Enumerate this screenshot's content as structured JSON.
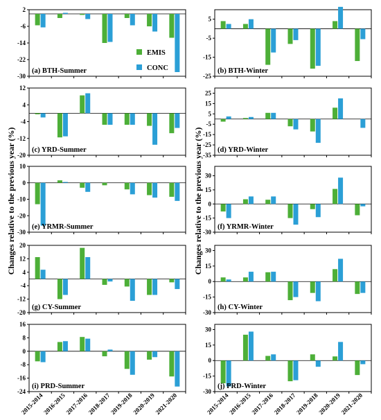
{
  "ylabel": "Changes relative to the previous year (%)",
  "legend": {
    "items": [
      {
        "name": "EMIS",
        "color": "#4daf38"
      },
      {
        "name": "CONC",
        "color": "#2b9fd6"
      }
    ],
    "placement": "inside panel (a), lower-right"
  },
  "chart_data": [
    {
      "id": "a",
      "type": "bar",
      "label": "(a) BTH-Summer",
      "yticks": [
        2,
        -6,
        -14,
        -22,
        -30
      ],
      "ylim": [
        -30,
        2
      ],
      "categories": [
        "2015-2014",
        "2016-2015",
        "2017-2016",
        "2018-2017",
        "2019-2018",
        "2020-2019",
        "2021-2020"
      ],
      "series": [
        {
          "name": "EMIS",
          "values": [
            -5.5,
            -2.0,
            -0.5,
            -14.0,
            -2.0,
            -6.0,
            -11.5
          ]
        },
        {
          "name": "CONC",
          "values": [
            -6.5,
            0.5,
            -2.5,
            -13.5,
            -5.5,
            -8.5,
            -28.0
          ]
        }
      ]
    },
    {
      "id": "b",
      "type": "bar",
      "label": "(b) BTH-Winter",
      "yticks": [
        5,
        -5,
        -15,
        -25
      ],
      "ylim": [
        -25,
        10
      ],
      "categories": [
        "2015-2014",
        "2016-2015",
        "2017-2016",
        "2018-2017",
        "2019-2018",
        "2020-2019",
        "2021-2020"
      ],
      "series": [
        {
          "name": "EMIS",
          "values": [
            4.0,
            2.5,
            -19.0,
            -8.0,
            -21.0,
            4.0,
            -17.0
          ]
        },
        {
          "name": "CONC",
          "values": [
            2.5,
            5.0,
            -12.5,
            -6.0,
            -19.5,
            11.5,
            -5.5
          ]
        }
      ]
    },
    {
      "id": "c",
      "type": "bar",
      "label": "(c) YRD-Summer",
      "yticks": [
        12,
        4,
        -4,
        -12,
        -20
      ],
      "ylim": [
        -20,
        12
      ],
      "categories": [
        "2015-2014",
        "2016-2015",
        "2017-2016",
        "2018-2017",
        "2019-2018",
        "2020-2019",
        "2021-2020"
      ],
      "series": [
        {
          "name": "EMIS",
          "values": [
            -0.5,
            -11.5,
            8.5,
            -5.5,
            -5.5,
            -6.0,
            -9.5
          ]
        },
        {
          "name": "CONC",
          "values": [
            -2.0,
            -11.0,
            9.5,
            -5.5,
            -5.5,
            -15.0,
            -7.0
          ]
        }
      ]
    },
    {
      "id": "d",
      "type": "bar",
      "label": "(d) YRD-Winter",
      "yticks": [
        25,
        15,
        5,
        -5,
        -15,
        -25,
        -35
      ],
      "ylim": [
        -35,
        30
      ],
      "categories": [
        "2015-2014",
        "2016-2015",
        "2017-2016",
        "2018-2017",
        "2019-2018",
        "2020-2019",
        "2021-2020"
      ],
      "series": [
        {
          "name": "EMIS",
          "values": [
            -2.5,
            1.0,
            6.0,
            -7.0,
            -12.0,
            11.0,
            0.0
          ]
        },
        {
          "name": "CONC",
          "values": [
            2.5,
            2.0,
            6.0,
            -10.0,
            -23.0,
            20.0,
            -8.5
          ]
        }
      ]
    },
    {
      "id": "e",
      "type": "bar",
      "label": "(e) YRMR-Summer",
      "yticks": [
        10,
        0,
        -10,
        -20,
        -30
      ],
      "ylim": [
        -30,
        10
      ],
      "categories": [
        "2015-2014",
        "2016-2015",
        "2017-2016",
        "2018-2017",
        "2019-2018",
        "2020-2019",
        "2021-2020"
      ],
      "series": [
        {
          "name": "EMIS",
          "values": [
            -13.0,
            1.5,
            -3.0,
            -1.5,
            -4.0,
            -7.5,
            -8.5
          ]
        },
        {
          "name": "CONC",
          "values": [
            -26.0,
            0.5,
            -5.5,
            0.0,
            -7.0,
            -9.0,
            -11.0
          ]
        }
      ]
    },
    {
      "id": "f",
      "type": "bar",
      "label": "(f) YRMR-Winter",
      "yticks": [
        30,
        15,
        0,
        -15,
        -30
      ],
      "ylim": [
        -30,
        40
      ],
      "categories": [
        "2015-2014",
        "2016-2015",
        "2017-2016",
        "2018-2017",
        "2019-2018",
        "2020-2019",
        "2021-2020"
      ],
      "series": [
        {
          "name": "EMIS",
          "values": [
            -8.0,
            5.0,
            4.5,
            -15.0,
            -5.5,
            16.0,
            -12.0
          ]
        },
        {
          "name": "CONC",
          "values": [
            -15.0,
            8.0,
            8.0,
            -22.0,
            -14.0,
            28.0,
            -2.5
          ]
        }
      ]
    },
    {
      "id": "g",
      "type": "bar",
      "label": "(g) CY-Summer",
      "yticks": [
        20,
        12,
        4,
        -4,
        -12,
        -20
      ],
      "ylim": [
        -20,
        20
      ],
      "categories": [
        "2015-2014",
        "2016-2015",
        "2017-2016",
        "2018-2017",
        "2019-2018",
        "2020-2019",
        "2021-2020"
      ],
      "series": [
        {
          "name": "EMIS",
          "values": [
            13.0,
            -12.0,
            18.5,
            -3.5,
            -4.5,
            -9.5,
            -2.0
          ]
        },
        {
          "name": "CONC",
          "values": [
            5.5,
            -9.5,
            13.0,
            -1.5,
            -13.0,
            -9.5,
            -6.0
          ]
        }
      ]
    },
    {
      "id": "h",
      "type": "bar",
      "label": "(h) CY-Winter",
      "yticks": [
        30,
        15,
        0,
        -15,
        -30
      ],
      "ylim": [
        -30,
        35
      ],
      "categories": [
        "2015-2014",
        "2016-2015",
        "2017-2016",
        "2018-2017",
        "2019-2018",
        "2020-2019",
        "2021-2020"
      ],
      "series": [
        {
          "name": "EMIS",
          "values": [
            4.0,
            4.0,
            9.0,
            -18.0,
            -11.0,
            12.0,
            -12.0
          ]
        },
        {
          "name": "CONC",
          "values": [
            2.0,
            9.5,
            9.5,
            -15.0,
            -19.0,
            22.0,
            -11.0
          ]
        }
      ]
    },
    {
      "id": "i",
      "type": "bar",
      "label": "(i) PRD-Summer",
      "yticks": [
        16,
        8,
        0,
        -8,
        -16,
        -24
      ],
      "ylim": [
        -24,
        16
      ],
      "categories": [
        "2015-2014",
        "2016-2015",
        "2017-2016",
        "2018-2017",
        "2019-2018",
        "2020-2019",
        "2021-2020"
      ],
      "series": [
        {
          "name": "EMIS",
          "values": [
            -6.0,
            5.5,
            8.5,
            -3.0,
            -10.5,
            -5.0,
            -15.0
          ]
        },
        {
          "name": "CONC",
          "values": [
            -6.5,
            6.0,
            7.5,
            1.0,
            -14.0,
            -3.5,
            -21.0
          ]
        }
      ]
    },
    {
      "id": "j",
      "type": "bar",
      "label": "(j) PRD-Winter",
      "yticks": [
        30,
        15,
        0,
        -15,
        -30
      ],
      "ylim": [
        -30,
        35
      ],
      "categories": [
        "2015-2014",
        "2016-2015",
        "2017-2016",
        "2018-2017",
        "2019-2018",
        "2020-2019",
        "2021-2020"
      ],
      "series": [
        {
          "name": "EMIS",
          "values": [
            -22.0,
            25.0,
            4.5,
            -20.0,
            6.0,
            4.0,
            -14.0
          ]
        },
        {
          "name": "CONC",
          "values": [
            -25.0,
            28.0,
            6.0,
            -19.0,
            -6.0,
            18.0,
            -3.5
          ]
        }
      ]
    }
  ]
}
